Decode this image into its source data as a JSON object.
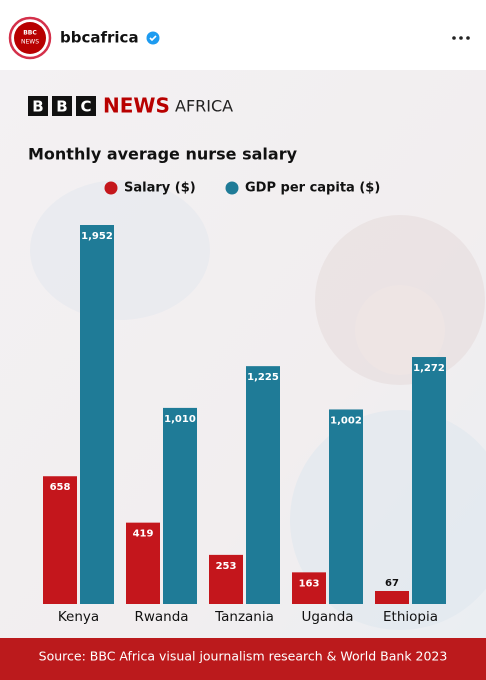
{
  "post": {
    "account": "bbcafrica",
    "avatar": [
      "BBC",
      "NEWS"
    ]
  },
  "logo": {
    "letters": [
      "B",
      "B",
      "C"
    ],
    "news": "NEWS",
    "region": "AFRICA"
  },
  "chart_data": {
    "type": "bar",
    "title": "Monthly average nurse salary",
    "categories": [
      "Kenya",
      "Rwanda",
      "Tanzania",
      "Uganda",
      "Ethiopia"
    ],
    "series": [
      {
        "name": "Salary ($)",
        "color": "#c4161c",
        "values": [
          658,
          419,
          253,
          163,
          67
        ]
      },
      {
        "name": "GDP per capita ($)",
        "color": "#1f7b97",
        "values": [
          1952,
          1010,
          1225,
          1002,
          1272
        ],
        "value_labels": [
          "1,952",
          "1,010",
          "1,225",
          "1,002",
          "1,272"
        ]
      }
    ],
    "source": "Source: BBC Africa visual journalism research & World Bank 2023"
  }
}
